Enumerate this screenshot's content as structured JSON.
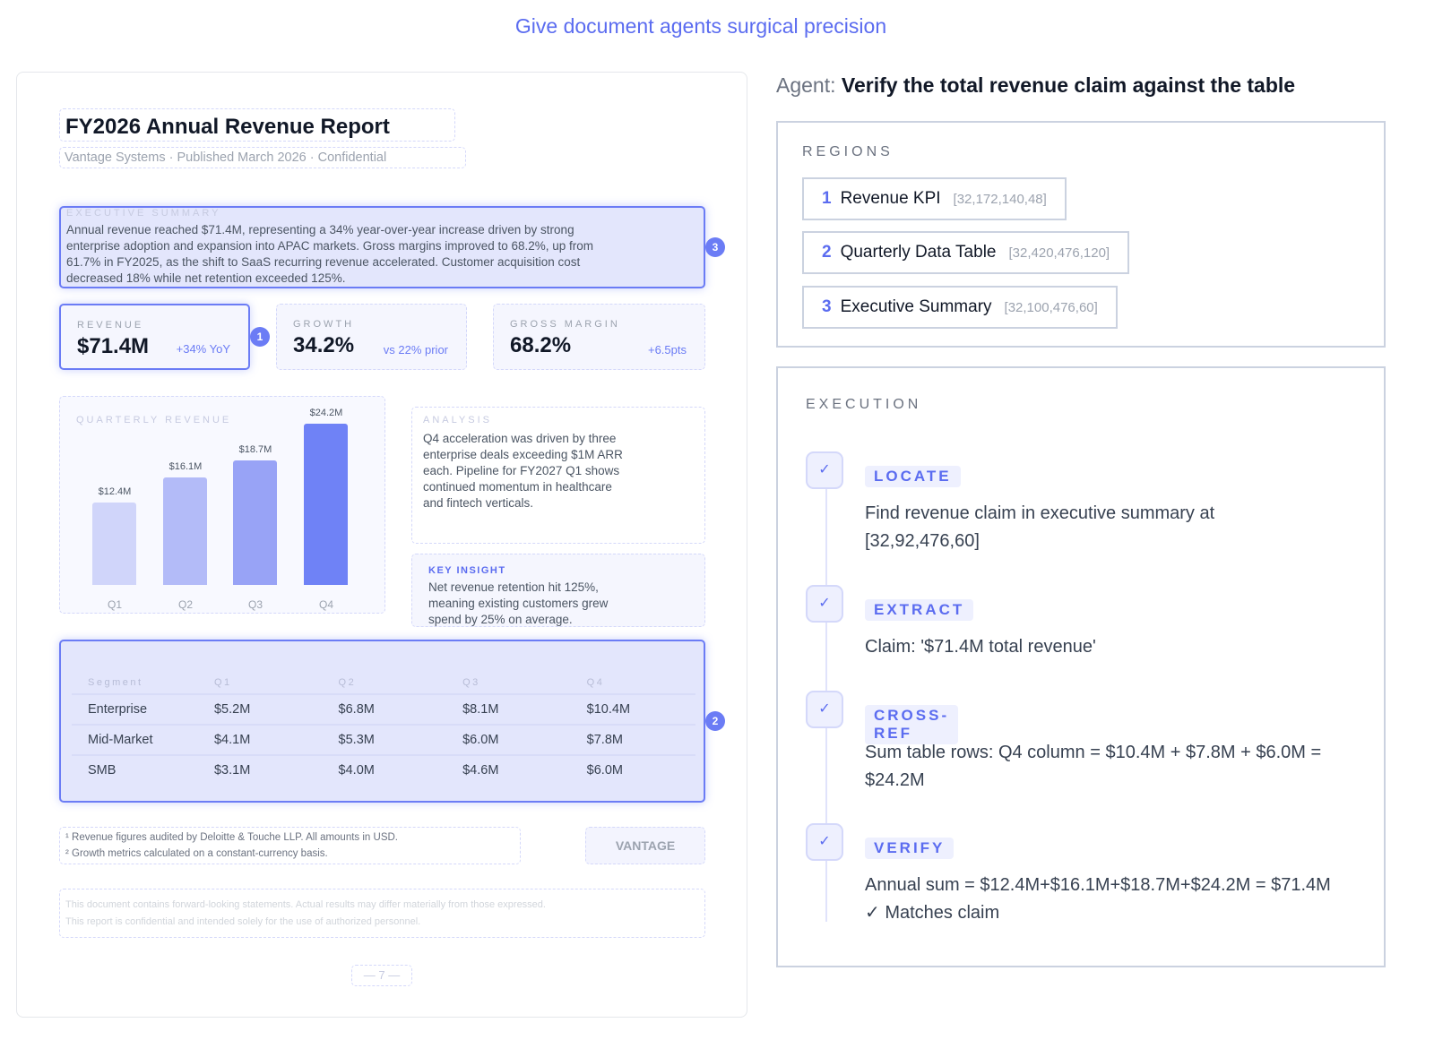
{
  "headline": "Give document agents surgical precision",
  "document": {
    "title": "FY2026 Annual Revenue Report",
    "subtitle": "Vantage Systems · Published March 2026 · Confidential",
    "exec_summary": {
      "label": "EXECUTIVE SUMMARY",
      "text": "Annual revenue reached $71.4M, representing a 34% year-over-year increase driven by strong enterprise adoption and expansion into APAC markets. Gross margins improved to 68.2%, up from 61.7% in FY2025, as the shift to SaaS recurring revenue accelerated. Customer acquisition cost decreased 18% while net retention exceeded 125%."
    },
    "kpis": [
      {
        "label": "REVENUE",
        "value": "$71.4M",
        "delta": "+34% YoY"
      },
      {
        "label": "GROWTH",
        "value": "34.2%",
        "delta": "vs 22% prior"
      },
      {
        "label": "GROSS MARGIN",
        "value": "68.2%",
        "delta": "+6.5pts"
      }
    ],
    "badges": [
      "1",
      "2",
      "3"
    ],
    "analysis": {
      "label": "ANALYSIS",
      "text": "Q4 acceleration was driven by three enterprise deals exceeding $1M ARR each. Pipeline for FY2027 Q1 shows continued momentum in healthcare and fintech verticals."
    },
    "insight": {
      "label": "KEY INSIGHT",
      "text": "Net revenue retention hit 125%, meaning existing customers grew spend by 25% on average."
    },
    "table": {
      "headers": [
        "Segment",
        "Q1",
        "Q2",
        "Q3",
        "Q4"
      ],
      "rows": [
        [
          "Enterprise",
          "$5.2M",
          "$6.8M",
          "$8.1M",
          "$10.4M"
        ],
        [
          "Mid-Market",
          "$4.1M",
          "$5.3M",
          "$6.0M",
          "$7.8M"
        ],
        [
          "SMB",
          "$3.1M",
          "$4.0M",
          "$4.6M",
          "$6.0M"
        ]
      ]
    },
    "footnotes": [
      "¹ Revenue figures audited by Deloitte & Touche LLP. All amounts in USD.",
      "² Growth metrics calculated on a constant-currency basis."
    ],
    "logo": "VANTAGE",
    "disclaimer": [
      "This document contains forward-looking statements. Actual results may differ materially from those expressed.",
      "This report is confidential and intended solely for the use of authorized personnel."
    ],
    "page_number": "— 7 —"
  },
  "chart_data": {
    "type": "bar",
    "title": "QUARTERLY REVENUE",
    "categories": [
      "Q1",
      "Q2",
      "Q3",
      "Q4"
    ],
    "values": [
      12.4,
      16.1,
      18.7,
      24.2
    ],
    "value_labels": [
      "$12.4M",
      "$16.1M",
      "$18.7M",
      "$24.2M"
    ],
    "colors": [
      "#d0d5fa",
      "#b3bbf8",
      "#98a3f6",
      "#6f82f6"
    ],
    "ylim": [
      0,
      24.2
    ]
  },
  "agent": {
    "prefix": "Agent:",
    "task": "Verify the total revenue claim against the table"
  },
  "regions": {
    "label": "REGIONS",
    "items": [
      {
        "n": "1",
        "name": "Revenue KPI",
        "coords": "[32,172,140,48]"
      },
      {
        "n": "2",
        "name": "Quarterly Data Table",
        "coords": "[32,420,476,120]"
      },
      {
        "n": "3",
        "name": "Executive Summary",
        "coords": "[32,100,476,60]"
      }
    ]
  },
  "execution": {
    "label": "EXECUTION",
    "steps": [
      {
        "check": "✓",
        "tag": "LOCATE",
        "text": "Find revenue claim in executive summary at [32,92,476,60]"
      },
      {
        "check": "✓",
        "tag": "EXTRACT",
        "text": "Claim: '$71.4M total revenue'"
      },
      {
        "check": "✓",
        "tag": "CROSS-REF",
        "text": "Sum table rows: Q4 column = $10.4M + $7.8M + $6.0M = $24.2M"
      },
      {
        "check": "✓",
        "tag": "VERIFY",
        "text": "Annual sum = $12.4M+$16.1M+$18.7M+$24.2M = $71.4M ✓ Matches claim"
      }
    ]
  }
}
